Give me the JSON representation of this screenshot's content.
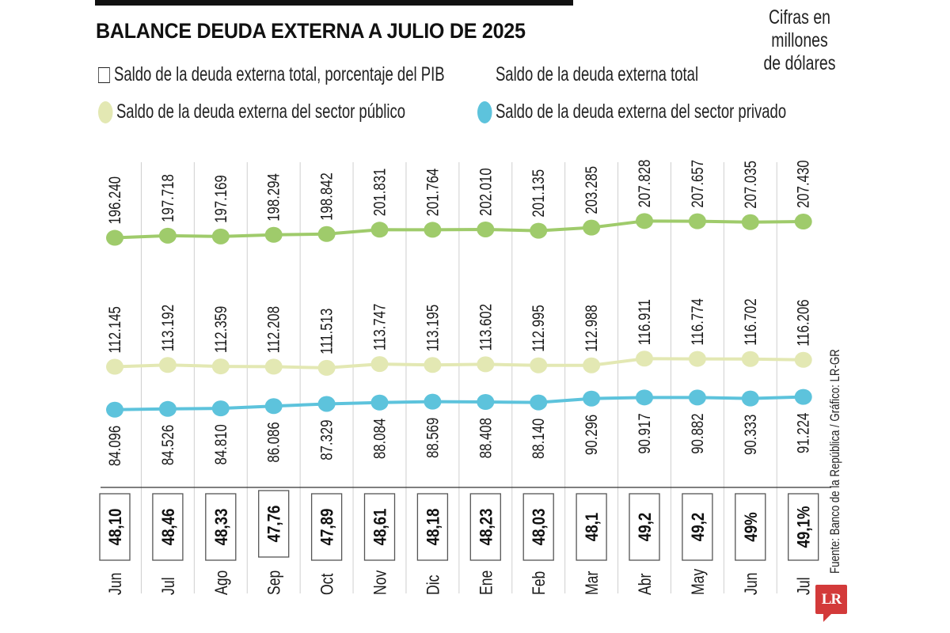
{
  "header": {
    "title": "BALANCE DEUDA EXTERNA A JULIO DE 2025",
    "units_line1": "Cifras en",
    "units_line2": "millones",
    "units_line3": "de dólares"
  },
  "legend": [
    {
      "label": "Saldo de la deuda externa total, porcentaje del PIB",
      "swatch": "box",
      "color": "#ffffff"
    },
    {
      "label": "Saldo de la deuda externa total",
      "swatch": "dot",
      "color": "#9fcb6b"
    },
    {
      "label": "Saldo de la deuda externa del sector público",
      "swatch": "dot",
      "color": "#e3e8b3"
    },
    {
      "label": "Saldo de la deuda externa del sector privado",
      "swatch": "dot",
      "color": "#5dc3dc"
    }
  ],
  "footer": {
    "source": "Fuente: Banco de la República / Gráfico: LR-GR",
    "logo": "LR"
  },
  "colors": {
    "total": "#9fcb6b",
    "public": "#e3e8b3",
    "private": "#5dc3dc",
    "divider": "#cfcfcf",
    "axis": "#333333",
    "logo": "#d33a3a"
  },
  "chart_data": {
    "type": "line",
    "title": "BALANCE DEUDA EXTERNA A JULIO DE 2025",
    "subtitle": "Cifras en millones de dólares",
    "xlabel": "",
    "ylabel": "",
    "grid": "vertical dividers between months",
    "legend_position": "top",
    "categories": [
      "Jun",
      "Jul",
      "Ago",
      "Sep",
      "Oct",
      "Nov",
      "Dic",
      "Ene",
      "Feb",
      "Mar",
      "Abr",
      "May",
      "Jun",
      "Jul"
    ],
    "series": [
      {
        "name": "Saldo de la deuda externa total",
        "key": "total",
        "values": [
          196240,
          197718,
          197169,
          198294,
          198842,
          201831,
          201764,
          202010,
          201135,
          203285,
          207828,
          207657,
          207035,
          207430
        ],
        "labels": [
          "196.240",
          "197.718",
          "197.169",
          "198.294",
          "198.842",
          "201.831",
          "201.764",
          "202.010",
          "201.135",
          "203.285",
          "207.828",
          "207.657",
          "207.035",
          "207.430"
        ]
      },
      {
        "name": "Saldo de la deuda externa del sector público",
        "key": "public",
        "values": [
          112145,
          113192,
          112359,
          112208,
          111513,
          113747,
          113195,
          113602,
          112995,
          112988,
          116911,
          116774,
          116702,
          116206
        ],
        "labels": [
          "112.145",
          "113.192",
          "112.359",
          "112.208",
          "111.513",
          "113.747",
          "113.195",
          "113.602",
          "112.995",
          "112.988",
          "116.911",
          "116.774",
          "116.702",
          "116.206"
        ]
      },
      {
        "name": "Saldo de la deuda externa del sector privado",
        "key": "private",
        "values": [
          84096,
          84526,
          84810,
          86086,
          87329,
          88084,
          88569,
          88408,
          88140,
          90296,
          90917,
          90882,
          90333,
          91224
        ],
        "labels": [
          "84.096",
          "84.526",
          "84.810",
          "86.086",
          "87.329",
          "88.084",
          "88.569",
          "88.408",
          "88.140",
          "90.296",
          "90.917",
          "90.882",
          "90.333",
          "91.224"
        ]
      },
      {
        "name": "Saldo de la deuda externa total, porcentaje del PIB",
        "key": "pct_pib",
        "values": [
          48.1,
          48.46,
          48.33,
          47.76,
          47.89,
          48.61,
          48.18,
          48.23,
          48.03,
          48.1,
          49.2,
          49.2,
          49,
          49.1
        ],
        "labels": [
          "48,10",
          "48,46",
          "48,33",
          "47,76",
          "47,89",
          "48,61",
          "48,18",
          "48,23",
          "48,03",
          "48,1",
          "49,2",
          "49,2",
          "49%",
          "49,1%"
        ]
      }
    ]
  }
}
